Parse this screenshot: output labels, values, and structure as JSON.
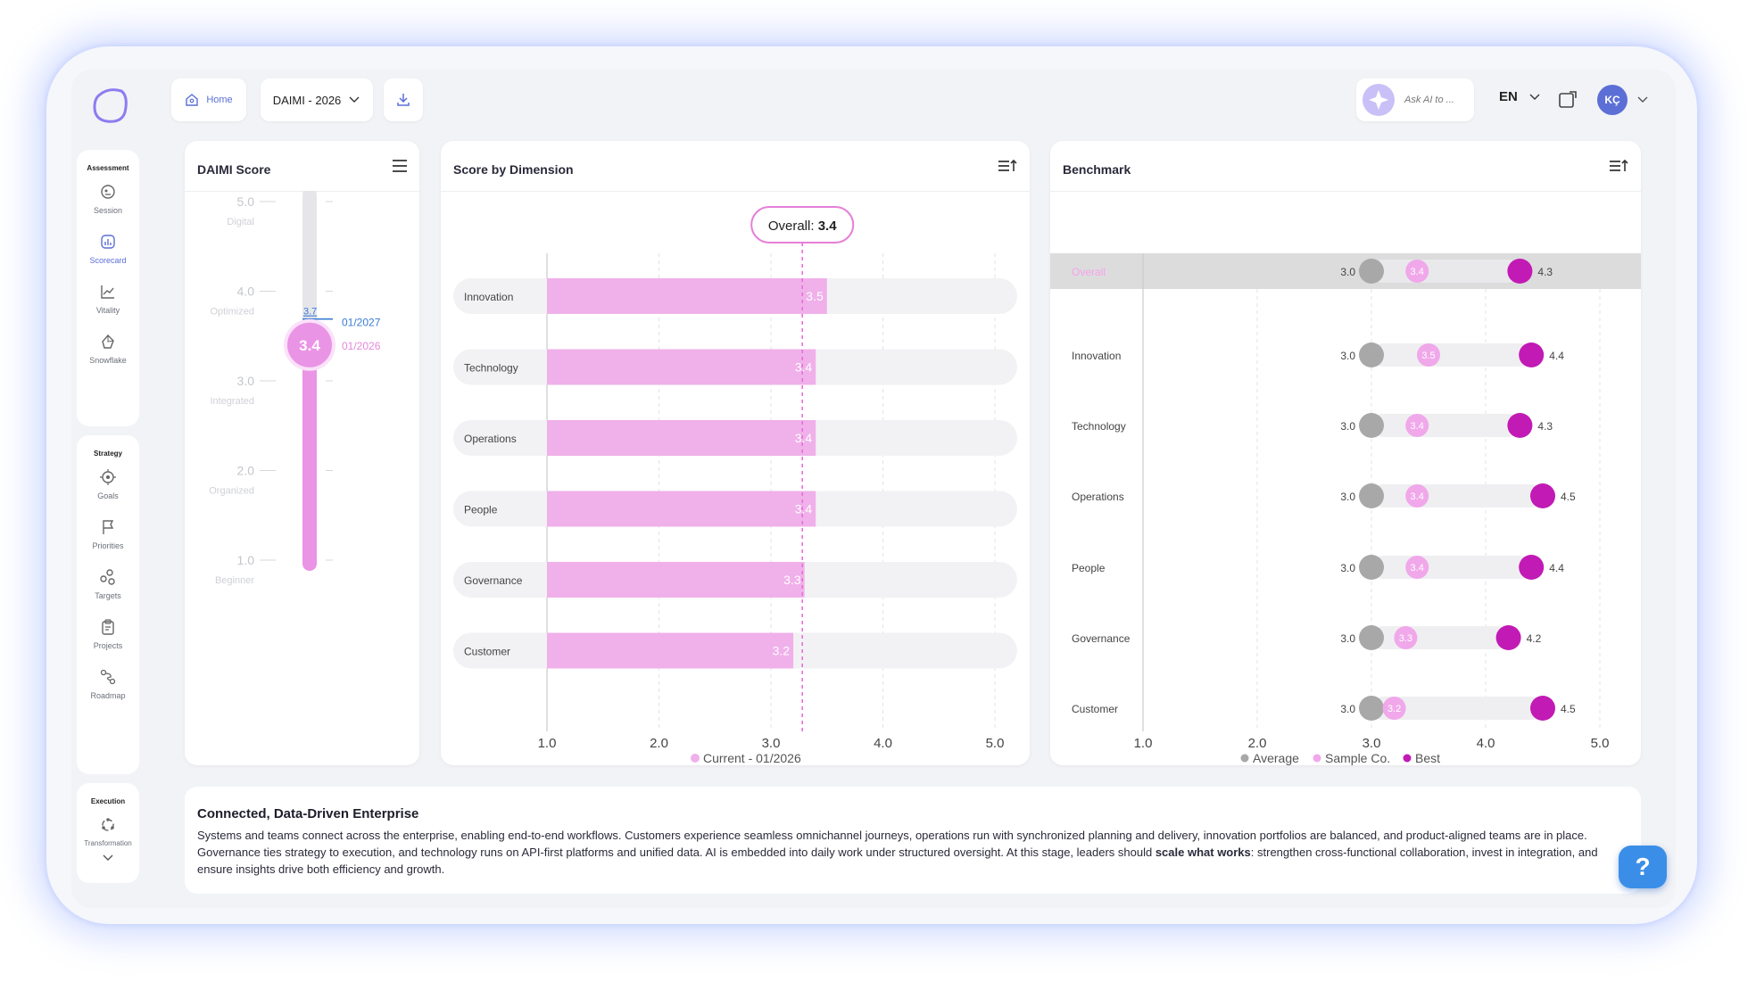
{
  "header": {
    "home_label": "Home",
    "report_select": "DAIMI - 2026",
    "ask_ai_placeholder": "Ask AI to ...",
    "language": "EN",
    "avatar_initials": "KÇ"
  },
  "sidebar": {
    "assessment": {
      "heading": "Assessment",
      "items": [
        {
          "label": "Session",
          "icon": "session-icon"
        },
        {
          "label": "Scorecard",
          "icon": "scorecard-icon",
          "active": true
        },
        {
          "label": "Vitality",
          "icon": "vitality-icon"
        },
        {
          "label": "Snowflake",
          "icon": "snowflake-icon"
        }
      ]
    },
    "strategy": {
      "heading": "Strategy",
      "items": [
        {
          "label": "Goals",
          "icon": "goals-icon"
        },
        {
          "label": "Priorities",
          "icon": "flag-icon"
        },
        {
          "label": "Targets",
          "icon": "targets-icon"
        },
        {
          "label": "Projects",
          "icon": "projects-icon"
        },
        {
          "label": "Roadmap",
          "icon": "roadmap-icon"
        }
      ]
    },
    "execution": {
      "heading": "Execution",
      "items": [
        {
          "label": "Transformation",
          "icon": "transformation-icon"
        }
      ]
    }
  },
  "daimi_score": {
    "title": "DAIMI Score",
    "levels": [
      {
        "value": "5.0",
        "name": "Digital"
      },
      {
        "value": "4.0",
        "name": "Optimized"
      },
      {
        "value": "3.0",
        "name": "Integrated"
      },
      {
        "value": "2.0",
        "name": "Organized"
      },
      {
        "value": "1.0",
        "name": "Beginner"
      }
    ],
    "current_value": "3.4",
    "current_date": "01/2026",
    "target_value": "3.7",
    "target_date": "01/2027"
  },
  "chart_data": [
    {
      "type": "bar",
      "title": "Score by Dimension",
      "overall_label": "Overall:",
      "overall_value": "3.4",
      "categories": [
        "Innovation",
        "Technology",
        "Operations",
        "People",
        "Governance",
        "Customer"
      ],
      "series": [
        {
          "name": "Current - 01/2026",
          "values": [
            3.5,
            3.4,
            3.4,
            3.4,
            3.3,
            3.2
          ]
        }
      ],
      "xlim": [
        1,
        5
      ],
      "ticks": [
        "1.0",
        "2.0",
        "3.0",
        "4.0",
        "5.0"
      ],
      "grid": true,
      "legend": "bottom",
      "color": "#f0b0ea"
    },
    {
      "type": "scatter",
      "title": "Benchmark",
      "categories": [
        "Overall",
        "Innovation",
        "Technology",
        "Operations",
        "People",
        "Governance",
        "Customer"
      ],
      "series": [
        {
          "name": "Average",
          "values": [
            3.0,
            3.0,
            3.0,
            3.0,
            3.0,
            3.0,
            3.0
          ],
          "color": "#a8a8a8"
        },
        {
          "name": "Sample Co.",
          "values": [
            3.4,
            3.5,
            3.4,
            3.4,
            3.4,
            3.3,
            3.2
          ],
          "color": "#f0a8ea"
        },
        {
          "name": "Best",
          "values": [
            4.3,
            4.4,
            4.3,
            4.5,
            4.4,
            4.2,
            4.5
          ],
          "color": "#c21ab5"
        }
      ],
      "xlim": [
        1,
        5
      ],
      "ticks": [
        "1.0",
        "2.0",
        "3.0",
        "4.0",
        "5.0"
      ],
      "grid": true,
      "legend": "bottom"
    }
  ],
  "description": {
    "title": "Connected, Data-Driven Enterprise",
    "text_before": "Systems and teams connect across the enterprise, enabling end-to-end workflows. Customers experience seamless omnichannel journeys, operations run with synchronized planning and delivery, innovation portfolios are balanced, and product-aligned teams are in place. Governance ties strategy to execution, and technology runs on API-first platforms and unified data. AI is embedded into daily work under structured oversight. At this stage, leaders should ",
    "text_bold": "scale what works",
    "text_after": ": strengthen cross-functional collaboration, invest in integration, and ensure insights drive both efficiency and growth."
  },
  "help_label": "?",
  "colors": {
    "accent_blue": "#5b6fd6",
    "pink": "#f0b0ea",
    "magenta": "#c21ab5",
    "grey_dot": "#a8a8a8"
  }
}
